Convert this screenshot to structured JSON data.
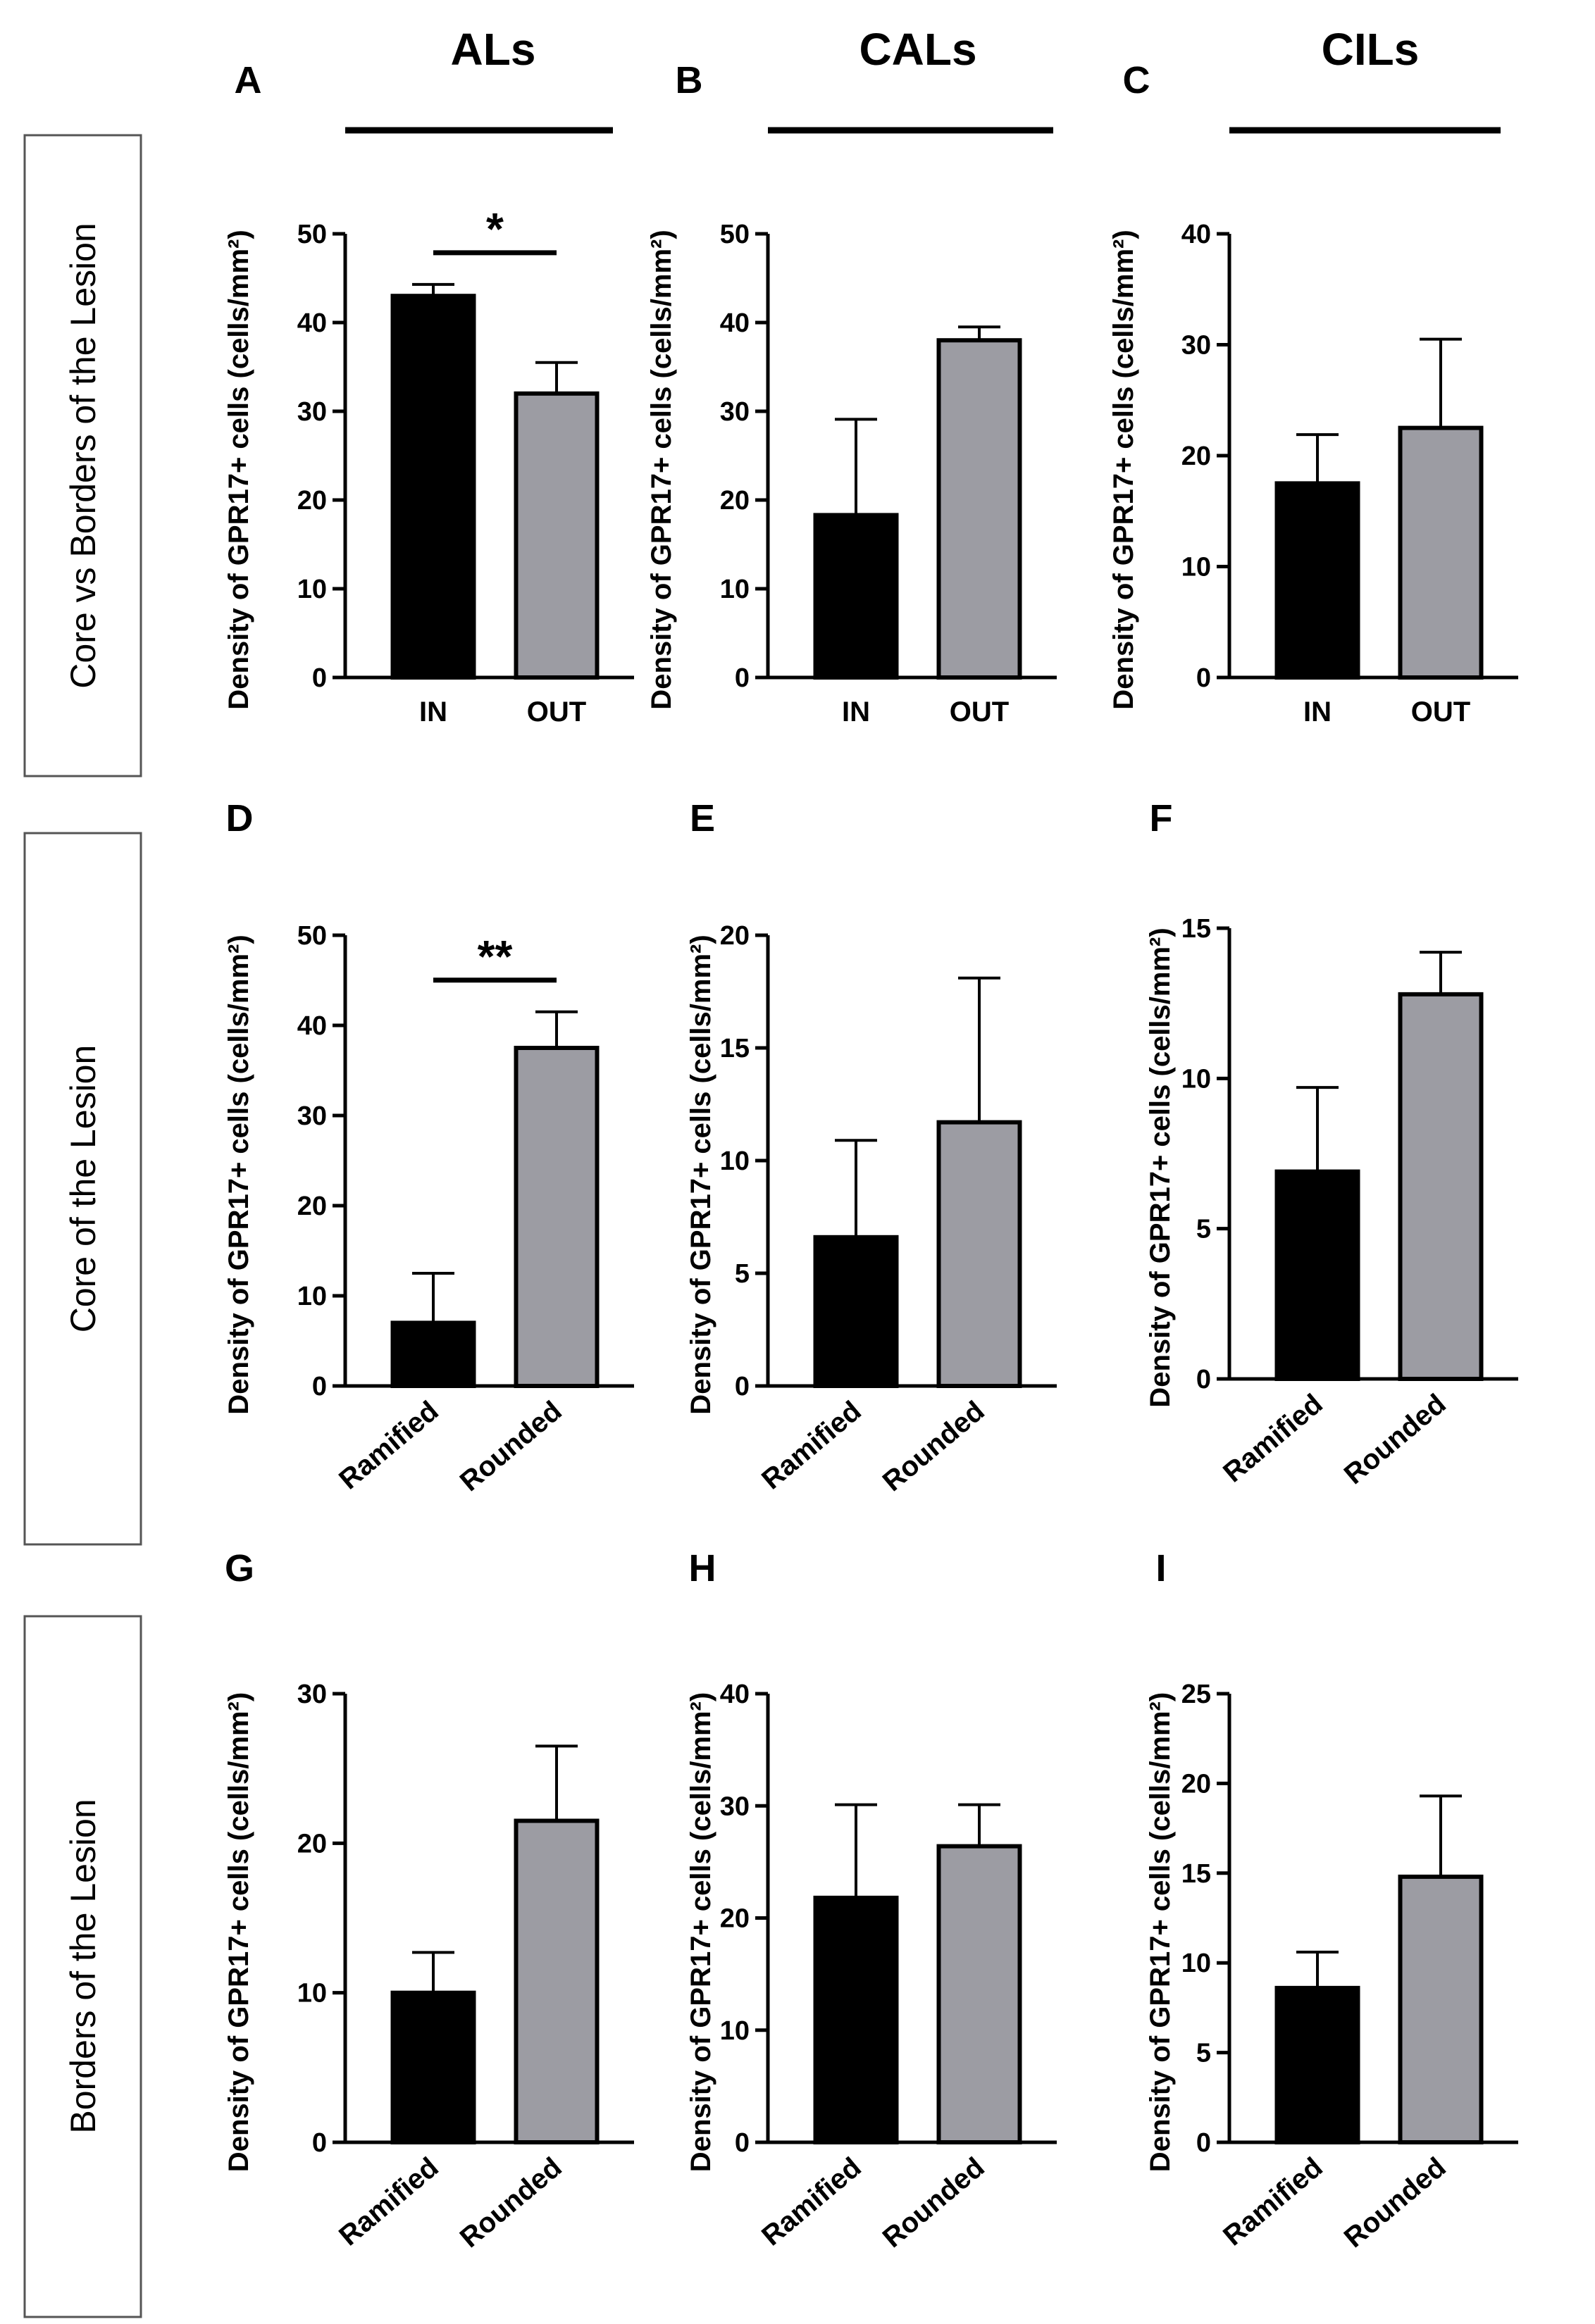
{
  "columns": [
    "ALs",
    "CALs",
    "CILs"
  ],
  "rows": [
    "Core vs Borders of the Lesion",
    "Core of the Lesion",
    "Borders of the Lesion"
  ],
  "colors": {
    "bar_in": "#000000",
    "bar_out": "#9c9ca3",
    "axis": "#000000",
    "frame": "#555555"
  },
  "chart_data": [
    {
      "panel": "A",
      "type": "bar",
      "ylabel": "Density of GPR17+ cells (cells/mm²)",
      "categories": [
        "IN",
        "OUT"
      ],
      "values": [
        43,
        32
      ],
      "errors": [
        1.3,
        3.5
      ],
      "ylim": [
        0,
        50
      ],
      "yticks": [
        0,
        10,
        20,
        30,
        40,
        50
      ],
      "significance": "*"
    },
    {
      "panel": "B",
      "type": "bar",
      "ylabel": "Density of GPR17+ cells (cells/mm²)",
      "categories": [
        "IN",
        "OUT"
      ],
      "values": [
        18.3,
        38
      ],
      "errors": [
        10.8,
        1.5
      ],
      "ylim": [
        0,
        50
      ],
      "yticks": [
        0,
        10,
        20,
        30,
        40,
        50
      ],
      "significance": ""
    },
    {
      "panel": "C",
      "type": "bar",
      "ylabel": "Density of GPR17+ cells (cells/mm²)",
      "categories": [
        "IN",
        "OUT"
      ],
      "values": [
        17.5,
        22.5
      ],
      "errors": [
        4.4,
        8
      ],
      "ylim": [
        0,
        40
      ],
      "yticks": [
        0,
        10,
        20,
        30,
        40
      ],
      "significance": ""
    },
    {
      "panel": "D",
      "type": "bar",
      "ylabel": "Density of GPR17+ cells (cells/mm²)",
      "categories": [
        "Ramified",
        "Rounded"
      ],
      "values": [
        7,
        37.5
      ],
      "errors": [
        5.5,
        4
      ],
      "ylim": [
        0,
        50
      ],
      "yticks": [
        0,
        10,
        20,
        30,
        40,
        50
      ],
      "significance": "**"
    },
    {
      "panel": "E",
      "type": "bar",
      "ylabel": "Density of GPR17+ cells (cells/mm²)",
      "categories": [
        "Ramified",
        "Rounded"
      ],
      "values": [
        6.6,
        11.7
      ],
      "errors": [
        4.3,
        6.4
      ],
      "ylim": [
        0,
        20
      ],
      "yticks": [
        0,
        5,
        10,
        15,
        20
      ],
      "significance": ""
    },
    {
      "panel": "F",
      "type": "bar",
      "ylabel": "Density of GPR17+ cells (cells/mm²)",
      "categories": [
        "Ramified",
        "Rounded"
      ],
      "values": [
        6.9,
        12.8
      ],
      "errors": [
        2.8,
        1.4
      ],
      "ylim": [
        0,
        15
      ],
      "yticks": [
        0,
        5,
        10,
        15
      ],
      "significance": ""
    },
    {
      "panel": "G",
      "type": "bar",
      "ylabel": "Density of GPR17+ cells (cells/mm²)",
      "categories": [
        "Ramified",
        "Rounded"
      ],
      "values": [
        10,
        21.5
      ],
      "errors": [
        2.7,
        5
      ],
      "ylim": [
        0,
        30
      ],
      "yticks": [
        0,
        10,
        20,
        30
      ],
      "significance": ""
    },
    {
      "panel": "H",
      "type": "bar",
      "ylabel": "Density of GPR17+ cells (cells/mm²)",
      "categories": [
        "Ramified",
        "Rounded"
      ],
      "values": [
        21.8,
        26.4
      ],
      "errors": [
        8.3,
        3.7
      ],
      "ylim": [
        0,
        40
      ],
      "yticks": [
        0,
        10,
        20,
        30,
        40
      ],
      "significance": ""
    },
    {
      "panel": "I",
      "type": "bar",
      "ylabel": "Density of GPR17+ cells (cells/mm²)",
      "categories": [
        "Ramified",
        "Rounded"
      ],
      "values": [
        8.6,
        14.8
      ],
      "errors": [
        2,
        4.5
      ],
      "ylim": [
        0,
        25
      ],
      "yticks": [
        0,
        5,
        10,
        15,
        20,
        25
      ],
      "significance": ""
    }
  ]
}
